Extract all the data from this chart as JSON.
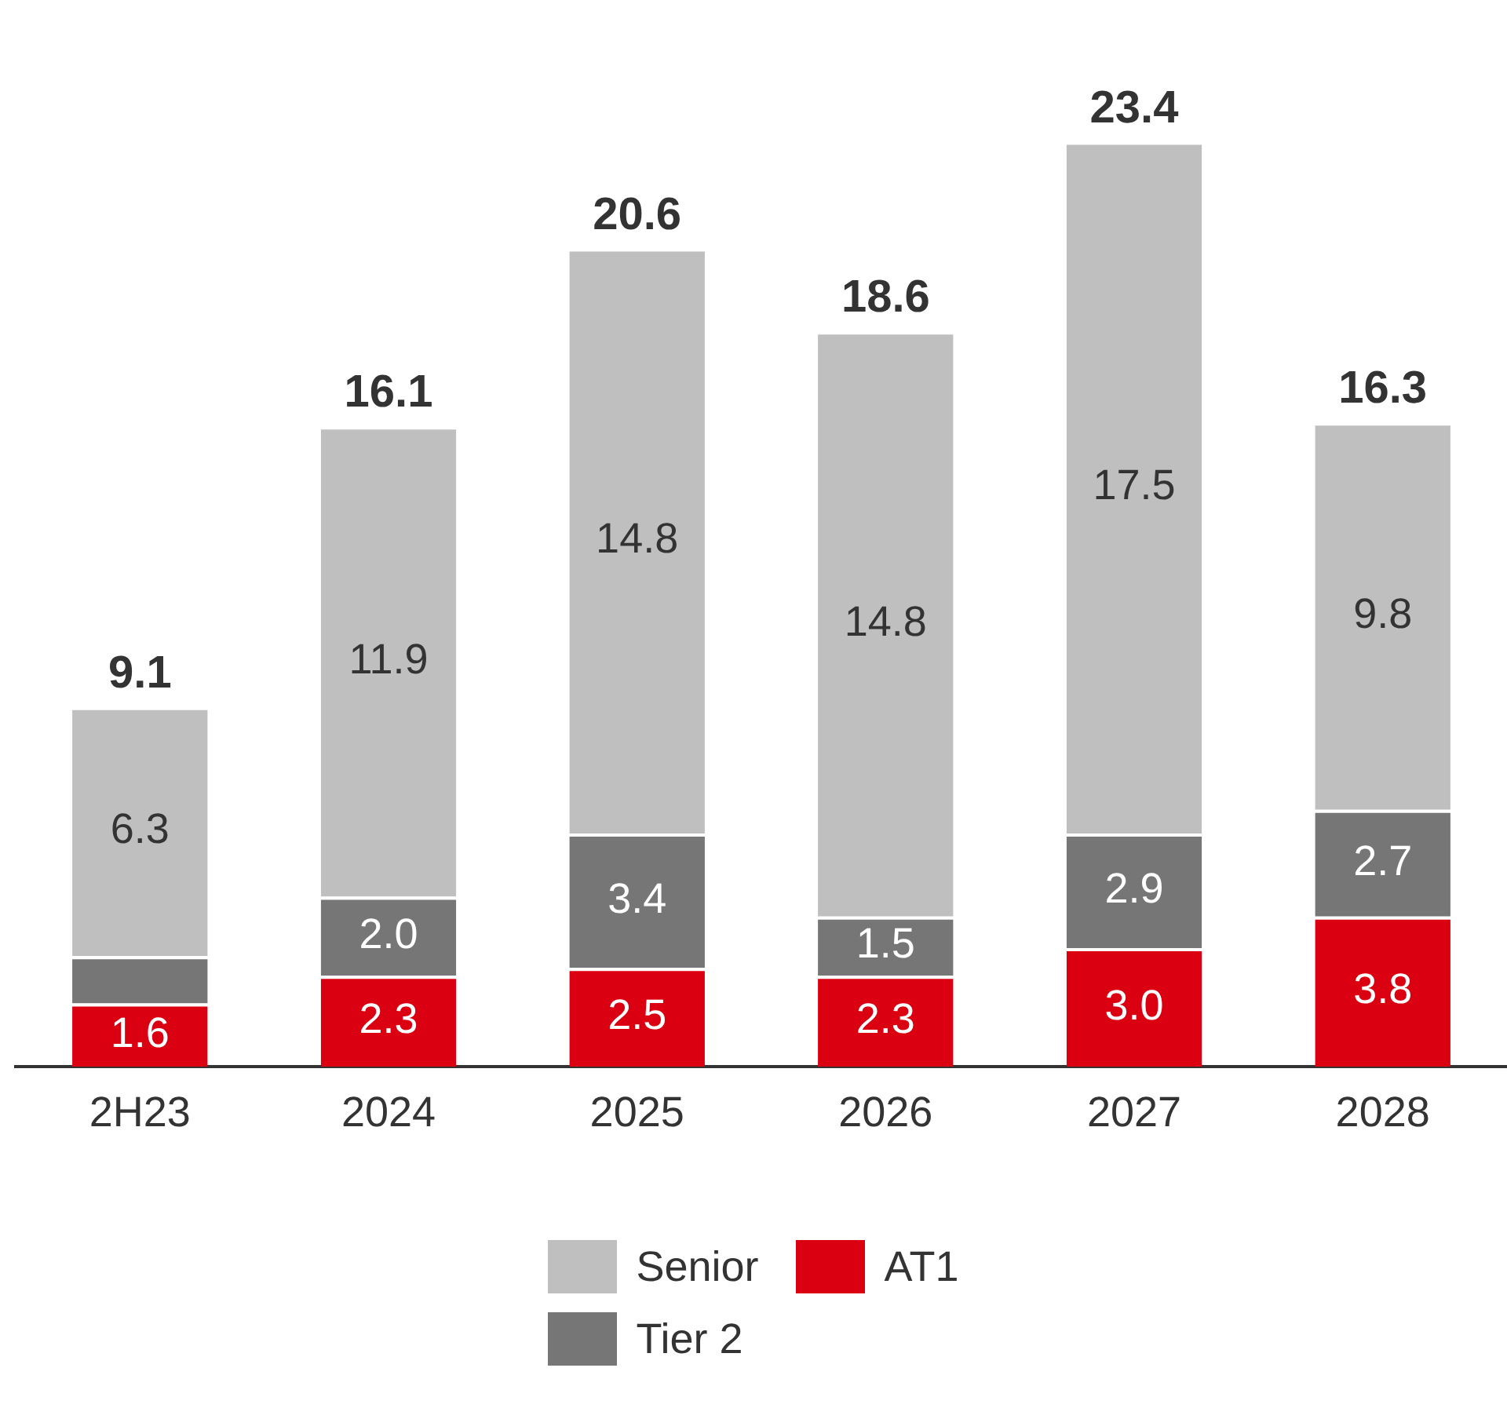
{
  "chart_data": {
    "type": "bar",
    "stacked": true,
    "categories": [
      "2H23",
      "2024",
      "2025",
      "2026",
      "2027",
      "2028"
    ],
    "series": [
      {
        "name": "AT1",
        "color": "#db0011",
        "values": [
          1.6,
          2.3,
          2.5,
          2.3,
          3.0,
          3.8
        ],
        "value_labels": [
          "1.6",
          "2.3",
          "2.5",
          "2.3",
          "3.0",
          "3.8"
        ]
      },
      {
        "name": "Tier 2",
        "color": "#767676",
        "values": [
          1.2,
          2.0,
          3.4,
          1.5,
          2.9,
          2.7
        ],
        "value_labels": [
          null,
          "2.0",
          "3.4",
          "1.5",
          "2.9",
          "2.7"
        ]
      },
      {
        "name": "Senior",
        "color": "#bfbfbf",
        "values": [
          6.3,
          11.9,
          14.8,
          14.8,
          17.5,
          9.8
        ],
        "value_labels": [
          "6.3",
          "11.9",
          "14.8",
          "14.8",
          "17.5",
          "9.8"
        ]
      }
    ],
    "totals": [
      "9.1",
      "16.1",
      "20.6",
      "18.6",
      "23.4",
      "16.3"
    ],
    "legend": "bottom",
    "grid": false
  }
}
